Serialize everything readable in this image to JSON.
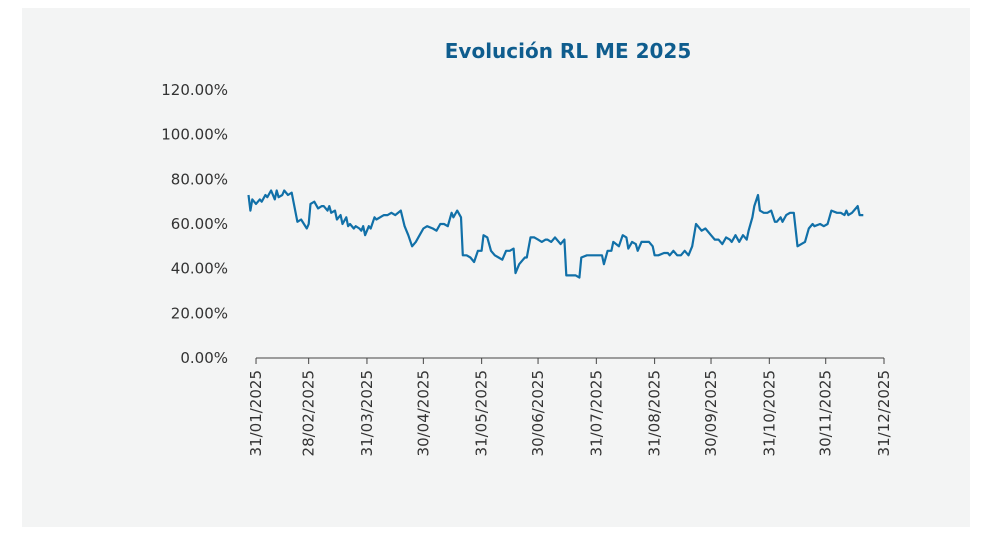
{
  "chart_data": {
    "type": "line",
    "title": "Evolución RL ME 2025",
    "x": [
      "27/01/2025",
      "28/01/2025",
      "29/01/2025",
      "31/01/2025",
      "02/02/2025",
      "03/02/2025",
      "05/02/2025",
      "06/02/2025",
      "08/02/2025",
      "10/02/2025",
      "11/02/2025",
      "12/02/2025",
      "14/02/2025",
      "15/02/2025",
      "17/02/2025",
      "19/02/2025",
      "22/02/2025",
      "24/02/2025",
      "27/02/2025",
      "28/02/2025",
      "01/03/2025",
      "03/03/2025",
      "05/03/2025",
      "07/03/2025",
      "08/03/2025",
      "10/03/2025",
      "11/03/2025",
      "12/03/2025",
      "14/03/2025",
      "15/03/2025",
      "17/03/2025",
      "18/03/2025",
      "20/03/2025",
      "21/03/2025",
      "22/03/2025",
      "24/03/2025",
      "25/03/2025",
      "27/03/2025",
      "28/03/2025",
      "29/03/2025",
      "30/03/2025",
      "01/04/2025",
      "02/04/2025",
      "04/04/2025",
      "05/04/2025",
      "07/04/2025",
      "09/04/2025",
      "11/04/2025",
      "13/04/2025",
      "15/04/2025",
      "18/04/2025",
      "20/04/2025",
      "22/04/2025",
      "24/04/2025",
      "26/04/2025",
      "28/04/2025",
      "30/04/2025",
      "02/05/2025",
      "05/05/2025",
      "07/05/2025",
      "09/05/2025",
      "11/05/2025",
      "13/05/2025",
      "15/05/2025",
      "16/05/2025",
      "18/05/2025",
      "20/05/2025",
      "21/05/2025",
      "23/05/2025",
      "25/05/2025",
      "27/05/2025",
      "29/05/2025",
      "31/05/2025",
      "01/06/2025",
      "03/06/2025",
      "05/06/2025",
      "07/06/2025",
      "09/06/2025",
      "11/06/2025",
      "13/06/2025",
      "15/06/2025",
      "17/06/2025",
      "18/06/2025",
      "20/06/2025",
      "22/06/2025",
      "23/06/2025",
      "24/06/2025",
      "26/06/2025",
      "28/06/2025",
      "30/06/2025",
      "02/07/2025",
      "04/07/2025",
      "05/07/2025",
      "07/07/2025",
      "09/07/2025",
      "10/07/2025",
      "12/07/2025",
      "14/07/2025",
      "15/07/2025",
      "18/07/2025",
      "20/07/2025",
      "22/07/2025",
      "23/07/2025",
      "26/07/2025",
      "28/07/2025",
      "30/07/2025",
      "01/08/2025",
      "03/08/2025",
      "04/08/2025",
      "06/08/2025",
      "08/08/2025",
      "09/08/2025",
      "12/08/2025",
      "14/08/2025",
      "16/08/2025",
      "17/08/2025",
      "19/08/2025",
      "21/08/2025",
      "22/08/2025",
      "24/08/2025",
      "25/08/2025",
      "28/08/2025",
      "30/08/2025",
      "31/08/2025",
      "02/09/2025",
      "05/09/2025",
      "07/09/2025",
      "08/09/2025",
      "10/09/2025",
      "12/09/2025",
      "14/09/2025",
      "16/09/2025",
      "18/09/2025",
      "20/09/2025",
      "22/09/2025",
      "23/09/2025",
      "25/09/2025",
      "27/09/2025",
      "30/09/2025",
      "02/10/2025",
      "04/10/2025",
      "06/10/2025",
      "08/10/2025",
      "10/10/2025",
      "11/10/2025",
      "13/10/2025",
      "15/10/2025",
      "17/10/2025",
      "19/10/2025",
      "20/10/2025",
      "22/10/2025",
      "23/10/2025",
      "25/10/2025",
      "26/10/2025",
      "28/10/2025",
      "30/10/2025",
      "01/11/2025",
      "03/11/2025",
      "04/11/2025",
      "06/11/2025",
      "07/11/2025",
      "09/11/2025",
      "11/11/2025",
      "13/11/2025",
      "15/11/2025",
      "17/11/2025",
      "19/11/2025",
      "21/11/2025",
      "23/11/2025",
      "24/11/2025",
      "27/11/2025",
      "29/11/2025",
      "01/12/2025",
      "03/12/2025",
      "06/12/2025",
      "08/12/2025",
      "10/12/2025",
      "11/12/2025",
      "12/12/2025",
      "14/12/2025",
      "16/12/2025",
      "17/12/2025",
      "18/12/2025",
      "20/12/2025"
    ],
    "series": [
      {
        "color": "#1170a8",
        "values": [
          73,
          66,
          71,
          69,
          71,
          70,
          73,
          72,
          75,
          71,
          75,
          72,
          73,
          75,
          73,
          74,
          61,
          62,
          58,
          60,
          69,
          70,
          67,
          68,
          68,
          66,
          68,
          65,
          66,
          62,
          64,
          60,
          63,
          59,
          60,
          58,
          59,
          58,
          57,
          59,
          55,
          59,
          58,
          63,
          62,
          63,
          64,
          64,
          65,
          64,
          66,
          59,
          55,
          50,
          52,
          55,
          58,
          59,
          58,
          57,
          60,
          60,
          59,
          65,
          63,
          66,
          63,
          46,
          46,
          45,
          43,
          48,
          48,
          55,
          54,
          48,
          46,
          45,
          44,
          48,
          48,
          49,
          38,
          42,
          44,
          45,
          45,
          54,
          54,
          53,
          52,
          53,
          53,
          52,
          54,
          53,
          51,
          53,
          37,
          37,
          37,
          36,
          45,
          46,
          46,
          46,
          46,
          46,
          42,
          48,
          48,
          52,
          50,
          55,
          54,
          49,
          52,
          51,
          48,
          52,
          52,
          52,
          50,
          46,
          46,
          47,
          47,
          46,
          48,
          46,
          46,
          48,
          46,
          50,
          60,
          59,
          57,
          58,
          55,
          53,
          53,
          51,
          54,
          53,
          52,
          55,
          52,
          55,
          53,
          57,
          63,
          68,
          73,
          66,
          65,
          65,
          66,
          61,
          61,
          63,
          61,
          64,
          65,
          65,
          50,
          51,
          52,
          58,
          60,
          59,
          60,
          59,
          60,
          66,
          65,
          65,
          64,
          66,
          64,
          65,
          67,
          68,
          64,
          64
        ]
      }
    ],
    "xlim": [
      "27/01/2025",
      "31/12/2025"
    ],
    "xticks": [
      "31/01/2025",
      "28/02/2025",
      "31/03/2025",
      "30/04/2025",
      "31/05/2025",
      "30/06/2025",
      "31/07/2025",
      "31/08/2025",
      "30/09/2025",
      "31/10/2025",
      "30/11/2025",
      "31/12/2025"
    ],
    "ylim": [
      0,
      120
    ],
    "yticks": [
      {
        "value": 0,
        "label": "0.00%"
      },
      {
        "value": 20,
        "label": "20.00%"
      },
      {
        "value": 40,
        "label": "40.00%"
      },
      {
        "value": 60,
        "label": "60.00%"
      },
      {
        "value": 80,
        "label": "80.00%"
      },
      {
        "value": 100,
        "label": "100.00%"
      },
      {
        "value": 120,
        "label": "120.00%"
      }
    ]
  }
}
